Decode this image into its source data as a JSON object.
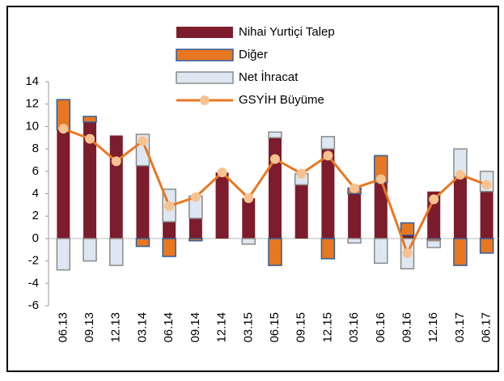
{
  "chart_data": {
    "type": "bar",
    "categories": [
      "06.13",
      "09.13",
      "12.13",
      "03.14",
      "06.14",
      "09.14",
      "12.14",
      "03.15",
      "06.15",
      "09.15",
      "12.15",
      "03.16",
      "06.16",
      "09.16",
      "12.16",
      "03.17",
      "06.17"
    ],
    "series": [
      {
        "name": "Nihai Yurtiçi Talep",
        "color": "#7d1c2c",
        "values": [
          9.7,
          10.4,
          9.2,
          6.5,
          1.5,
          1.8,
          5.9,
          3.6,
          9.0,
          4.8,
          8.0,
          4.0,
          5.0,
          0.3,
          4.2,
          5.5,
          4.2
        ]
      },
      {
        "name": "Diğer",
        "color": "#e87722",
        "values": [
          2.7,
          0.5,
          0,
          -0.7,
          -1.6,
          -0.2,
          0,
          0,
          -2.4,
          0,
          -1.8,
          0.5,
          2.4,
          1.1,
          -0.2,
          -2.4,
          -1.3
        ]
      },
      {
        "name": "Net İhracat",
        "color": "#dde7f1",
        "values": [
          -2.8,
          -2.0,
          -2.4,
          2.8,
          2.9,
          2.0,
          0,
          -0.5,
          0.5,
          1.0,
          1.1,
          -0.4,
          -2.2,
          -2.7,
          -0.6,
          2.5,
          1.8
        ]
      },
      {
        "name": "GSYİH Büyüme",
        "color": "#e87722",
        "values": [
          9.8,
          8.9,
          6.9,
          8.7,
          2.9,
          3.7,
          5.9,
          3.6,
          7.1,
          5.8,
          7.4,
          4.5,
          5.3,
          -1.3,
          3.5,
          5.7,
          4.8
        ]
      }
    ],
    "ylim": [
      -6,
      14
    ],
    "yticks": [
      -6,
      -4,
      -2,
      0,
      2,
      4,
      6,
      8,
      10,
      12,
      14
    ]
  }
}
